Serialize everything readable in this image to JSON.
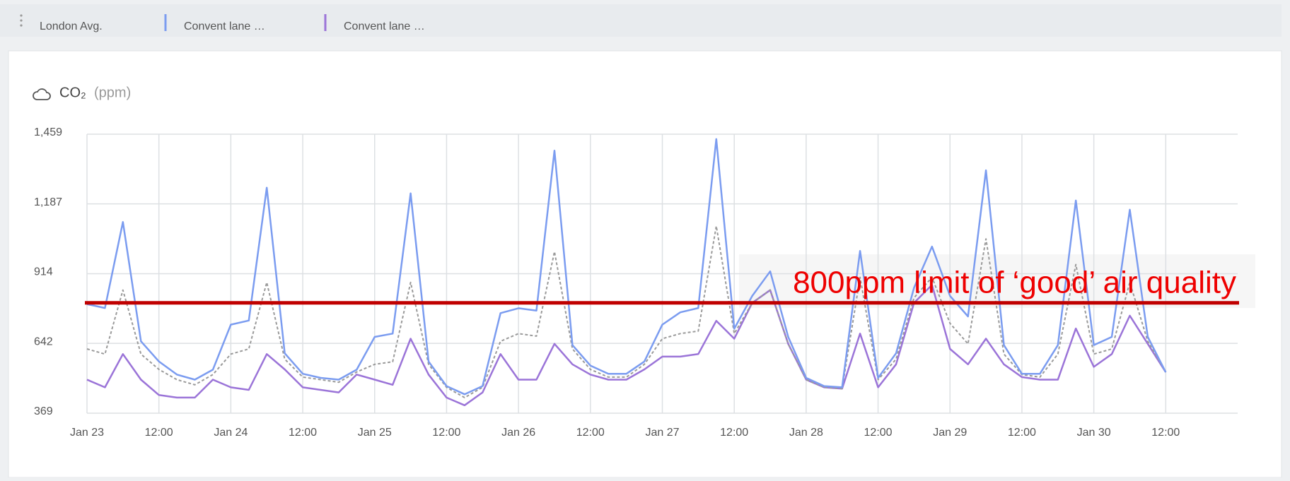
{
  "chart_data": {
    "type": "line",
    "title": "CO₂",
    "subtitle": "(ppm)",
    "x": [
      "Jan 23 00:00",
      "Jan 23 03:00",
      "Jan 23 06:00",
      "Jan 23 09:00",
      "Jan 23 12:00",
      "Jan 23 15:00",
      "Jan 23 18:00",
      "Jan 23 21:00",
      "Jan 24 00:00",
      "Jan 24 03:00",
      "Jan 24 06:00",
      "Jan 24 09:00",
      "Jan 24 12:00",
      "Jan 24 15:00",
      "Jan 24 18:00",
      "Jan 24 21:00",
      "Jan 25 00:00",
      "Jan 25 03:00",
      "Jan 25 06:00",
      "Jan 25 09:00",
      "Jan 25 12:00",
      "Jan 25 15:00",
      "Jan 25 18:00",
      "Jan 25 21:00",
      "Jan 26 00:00",
      "Jan 26 03:00",
      "Jan 26 06:00",
      "Jan 26 09:00",
      "Jan 26 12:00",
      "Jan 26 15:00",
      "Jan 26 18:00",
      "Jan 26 21:00",
      "Jan 27 00:00",
      "Jan 27 03:00",
      "Jan 27 06:00",
      "Jan 27 09:00",
      "Jan 27 12:00",
      "Jan 27 15:00",
      "Jan 27 18:00",
      "Jan 27 21:00",
      "Jan 28 00:00",
      "Jan 28 03:00",
      "Jan 28 06:00",
      "Jan 28 09:00",
      "Jan 28 12:00",
      "Jan 28 15:00",
      "Jan 28 18:00",
      "Jan 28 21:00",
      "Jan 29 00:00",
      "Jan 29 03:00",
      "Jan 29 06:00",
      "Jan 29 09:00",
      "Jan 29 12:00",
      "Jan 29 15:00",
      "Jan 29 18:00",
      "Jan 29 21:00",
      "Jan 30 00:00",
      "Jan 30 03:00",
      "Jan 30 06:00",
      "Jan 30 09:00",
      "Jan 30 12:00"
    ],
    "series": [
      {
        "name": "London Avg.",
        "color": "#9a9a9a",
        "dashed": true,
        "values": [
          620,
          600,
          850,
          600,
          540,
          500,
          480,
          520,
          600,
          620,
          880,
          580,
          510,
          500,
          490,
          530,
          560,
          570,
          880,
          560,
          470,
          430,
          470,
          650,
          680,
          670,
          1000,
          620,
          540,
          510,
          510,
          560,
          660,
          680,
          690,
          1100,
          680,
          800,
          850,
          640,
          500,
          470,
          465,
          900,
          500,
          580,
          820,
          900,
          720,
          640,
          1050,
          600,
          520,
          510,
          600,
          950,
          600,
          620,
          880,
          650,
          529
        ]
      },
      {
        "name": "Convent lane …",
        "color": "#7b9cf0",
        "values": [
          795,
          780,
          1116,
          650,
          571,
          520,
          500,
          539,
          715,
          731,
          1250,
          603,
          523,
          507,
          500,
          539,
          667,
          680,
          1228,
          571,
          475,
          443,
          475,
          760,
          779,
          770,
          1395,
          635,
          555,
          523,
          523,
          571,
          715,
          763,
          780,
          1440,
          699,
          827,
          923,
          667,
          507,
          475,
          470,
          1003,
          507,
          603,
          859,
          1020,
          827,
          747,
          1318,
          635,
          523,
          523,
          635,
          1200,
          635,
          667,
          1164,
          667,
          529
        ]
      },
      {
        "name": "Convent lane …",
        "color": "#9b74d8",
        "values": [
          500,
          470,
          600,
          500,
          440,
          430,
          430,
          500,
          470,
          460,
          600,
          540,
          470,
          460,
          450,
          520,
          500,
          480,
          660,
          520,
          430,
          400,
          450,
          600,
          500,
          500,
          640,
          560,
          520,
          500,
          500,
          540,
          590,
          590,
          600,
          730,
          660,
          800,
          850,
          640,
          500,
          470,
          465,
          680,
          470,
          560,
          800,
          870,
          620,
          560,
          660,
          560,
          510,
          500,
          500,
          700,
          550,
          600,
          750,
          640,
          529
        ]
      }
    ],
    "xlim": [
      "Jan 23 00:00",
      "Jan 31 00:00"
    ],
    "xticks": [
      {
        "value": "Jan 23 00:00",
        "label": "Jan 23"
      },
      {
        "value": "Jan 23 12:00",
        "label": "12:00"
      },
      {
        "value": "Jan 24 00:00",
        "label": "Jan 24"
      },
      {
        "value": "Jan 24 12:00",
        "label": "12:00"
      },
      {
        "value": "Jan 25 00:00",
        "label": "Jan 25"
      },
      {
        "value": "Jan 25 12:00",
        "label": "12:00"
      },
      {
        "value": "Jan 26 00:00",
        "label": "Jan 26"
      },
      {
        "value": "Jan 26 12:00",
        "label": "12:00"
      },
      {
        "value": "Jan 27 00:00",
        "label": "Jan 27"
      },
      {
        "value": "Jan 27 12:00",
        "label": "12:00"
      },
      {
        "value": "Jan 28 00:00",
        "label": "Jan 28"
      },
      {
        "value": "Jan 28 12:00",
        "label": "12:00"
      },
      {
        "value": "Jan 29 00:00",
        "label": "Jan 29"
      },
      {
        "value": "Jan 29 12:00",
        "label": "12:00"
      },
      {
        "value": "Jan 30 00:00",
        "label": "Jan 30"
      },
      {
        "value": "Jan 30 12:00",
        "label": "12:00"
      }
    ],
    "ylim": [
      369,
      1459
    ],
    "yticks": [
      369,
      642,
      914,
      {
        "value": 1187,
        "label": "1,187"
      },
      {
        "value": 1459,
        "label": "1,459"
      }
    ],
    "grid": true,
    "limit_line": {
      "value": 800,
      "label": "800ppm limit of ‘good’ air quality",
      "color": "#c00000"
    }
  }
}
